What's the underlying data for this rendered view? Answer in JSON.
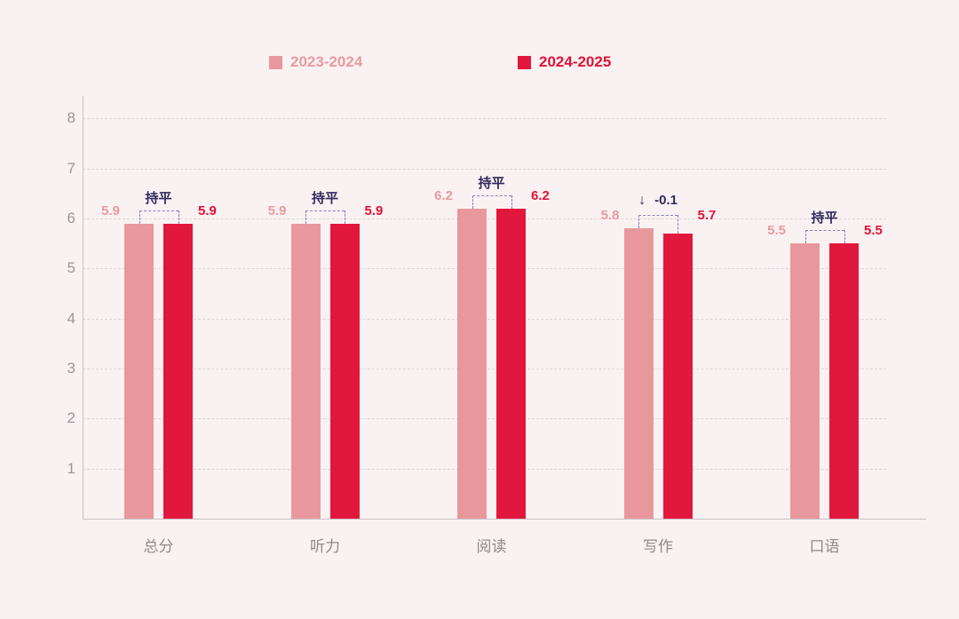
{
  "colors": {
    "background": "#faf2f2",
    "series1": "#e8989d",
    "series2": "#e2173d",
    "series1_text": "#ea9aa0",
    "series2_text": "#e11238",
    "annotation_text": "#312a5e",
    "bracket": "#8781bb",
    "grid": "#ddd6d7",
    "axis": "#c6c0c2",
    "tick_text": "#9b9597",
    "category_text": "#8e898c"
  },
  "legend": {
    "items": [
      {
        "label": "2023-2024",
        "color": "#e8989d",
        "text_color": "#ea9aa0"
      },
      {
        "label": "2024-2025",
        "color": "#e2173d",
        "text_color": "#e11238"
      }
    ]
  },
  "chart_data": {
    "type": "bar",
    "title": "",
    "xlabel": "",
    "ylabel": "",
    "categories": [
      "总分",
      "听力",
      "阅读",
      "写作",
      "口语"
    ],
    "series": [
      {
        "name": "2023-2024",
        "color": "#e8989d",
        "label_color": "#ea9aa0",
        "values": [
          5.9,
          5.9,
          6.2,
          5.8,
          5.5
        ]
      },
      {
        "name": "2024-2025",
        "color": "#e2173d",
        "label_color": "#e11238",
        "values": [
          5.9,
          5.9,
          6.2,
          5.7,
          5.5
        ]
      }
    ],
    "annotations": [
      {
        "category": "总分",
        "arrow": "",
        "text": "持平"
      },
      {
        "category": "听力",
        "arrow": "",
        "text": "持平"
      },
      {
        "category": "阅读",
        "arrow": "",
        "text": "持平"
      },
      {
        "category": "写作",
        "arrow": "↓",
        "text": "-0.1"
      },
      {
        "category": "口语",
        "arrow": "",
        "text": "持平"
      }
    ],
    "yticks": [
      "1",
      "2",
      "3",
      "4",
      "5",
      "6",
      "7",
      "8"
    ],
    "ylim": [
      0,
      8.45
    ],
    "grid": true,
    "grid_style": "dashed",
    "legend_position": "top"
  }
}
